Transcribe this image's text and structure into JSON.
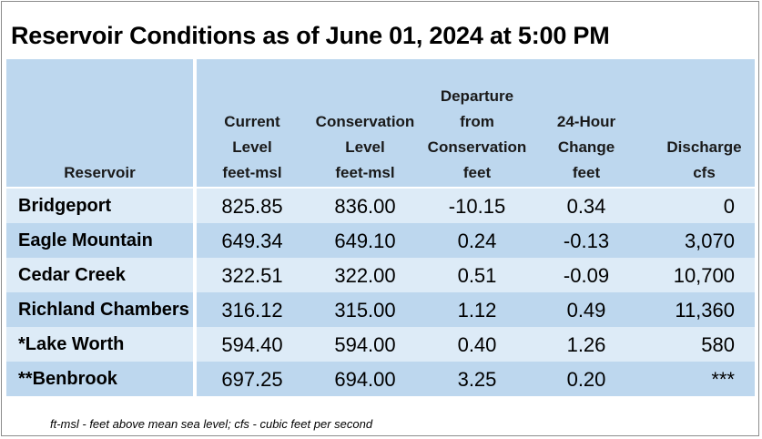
{
  "title": "Reservoir Conditions as of June 01, 2024 at 5:00 PM",
  "header": {
    "reservoir": "Reservoir",
    "current": [
      "Current",
      "Level",
      "feet-msl"
    ],
    "conservation": [
      "Conservation",
      "Level",
      "feet-msl"
    ],
    "departure": [
      "Departure",
      "from",
      "Conservation",
      "feet"
    ],
    "change": [
      "24-Hour",
      "Change",
      "feet"
    ],
    "discharge": [
      "Discharge",
      "cfs"
    ]
  },
  "rows": [
    {
      "name": "Bridgeport",
      "current": "825.85",
      "conservation": "836.00",
      "departure": "-10.15",
      "change": "0.34",
      "discharge": "0"
    },
    {
      "name": "Eagle Mountain",
      "current": "649.34",
      "conservation": "649.10",
      "departure": "0.24",
      "change": "-0.13",
      "discharge": "3,070"
    },
    {
      "name": "Cedar Creek",
      "current": "322.51",
      "conservation": "322.00",
      "departure": "0.51",
      "change": "-0.09",
      "discharge": "10,700"
    },
    {
      "name": "Richland Chambers",
      "current": "316.12",
      "conservation": "315.00",
      "departure": "1.12",
      "change": "0.49",
      "discharge": "11,360"
    },
    {
      "name": "*Lake Worth",
      "current": "594.40",
      "conservation": "594.00",
      "departure": "0.40",
      "change": "1.26",
      "discharge": "580"
    },
    {
      "name": "**Benbrook",
      "current": "697.25",
      "conservation": "694.00",
      "departure": "3.25",
      "change": "0.20",
      "discharge": "***"
    }
  ],
  "footnote": "ft-msl - feet above mean sea level; cfs - cubic feet per second",
  "colors": {
    "header_bg": "#bdd7ee",
    "row_light": "#ddebf7",
    "row_dark": "#bdd7ee"
  }
}
